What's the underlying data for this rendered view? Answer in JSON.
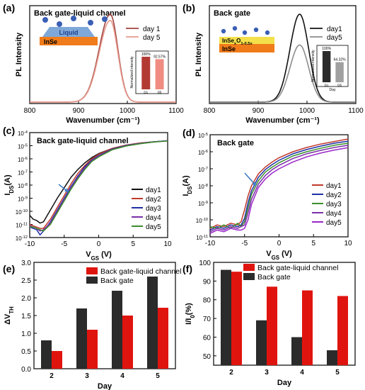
{
  "chart_data": [
    {
      "panel": "(a)",
      "type": "line",
      "title": "Back gate-liquid channel",
      "xlabel": "Wavenumber (cm⁻¹)",
      "ylabel": "PL Intensity",
      "xlim": [
        800,
        1100
      ],
      "xticks": [
        800,
        900,
        1000,
        1100
      ],
      "series": [
        {
          "name": "day 1",
          "color": "#a0433d",
          "peak_x": 965,
          "peak_y": 1.0
        },
        {
          "name": "day 5",
          "color": "#e89a8e",
          "peak_x": 965,
          "peak_y": 0.93
        }
      ],
      "schematic": {
        "top_label": "Liquid",
        "bottom_label": "InSe"
      },
      "inset": {
        "type": "bar",
        "ylabel": "Normalized intensity",
        "categories": [
          "D1",
          "D5"
        ],
        "values": [
          100,
          92.57
        ],
        "value_labels": [
          "100%",
          "92.57%"
        ]
      }
    },
    {
      "panel": "(b)",
      "type": "line",
      "title": "Back gate",
      "xlabel": "Wavenumber (cm⁻¹)",
      "ylabel": "PL Intensity",
      "xlim": [
        800,
        1100
      ],
      "xticks": [
        800,
        900,
        1000,
        1100
      ],
      "series": [
        {
          "name": "day1",
          "color": "#111111",
          "peak_x": 985,
          "peak_y": 1.0
        },
        {
          "name": "day5",
          "color": "#8c8c8c",
          "peak_x": 985,
          "peak_y": 0.65
        }
      ],
      "schematic": {
        "top_label": "InSe_xO_1-0.5x",
        "bottom_label": "InSe"
      },
      "inset": {
        "type": "bar",
        "xlabel": "Day",
        "ylabel": "Normalized intensity",
        "categories": [
          "D1",
          "D5"
        ],
        "values": [
          100,
          64.32
        ],
        "value_labels": [
          "100%",
          "64.32%"
        ]
      }
    },
    {
      "panel": "(c)",
      "type": "line",
      "title": "Back gate-liquid channel",
      "xlabel": "V_GS (V)",
      "ylabel": "I_DS(A)",
      "xlim": [
        -10,
        10
      ],
      "ylim_log10": [
        -12,
        -4
      ],
      "xticks": [
        -10,
        -5,
        0,
        5,
        10
      ],
      "yticks_exp": [
        -12,
        -11,
        -10,
        -9,
        -8,
        -7,
        -6,
        -5,
        -4
      ],
      "series": [
        {
          "name": "day1",
          "color": "#111111",
          "x": [
            -10,
            -9.5,
            -9,
            -8.5,
            -8,
            -7,
            -6,
            -5,
            -4,
            -3,
            -2,
            -1,
            0,
            2,
            4,
            6,
            8,
            10
          ],
          "log10_y": [
            -10.3,
            -10.6,
            -10.7,
            -10.9,
            -10.8,
            -9.9,
            -9.0,
            -8.2,
            -7.4,
            -6.8,
            -6.3,
            -5.9,
            -5.6,
            -5.2,
            -4.95,
            -4.8,
            -4.7,
            -4.62
          ]
        },
        {
          "name": "day2",
          "color": "#c0392b",
          "x": [
            -10,
            -9.5,
            -9,
            -8.5,
            -8,
            -7,
            -6,
            -5,
            -4,
            -3,
            -2,
            -1,
            0,
            2,
            4,
            6,
            8,
            10
          ],
          "log10_y": [
            -11.0,
            -11.1,
            -11.2,
            -11.3,
            -11.3,
            -10.6,
            -9.7,
            -8.8,
            -7.9,
            -7.1,
            -6.5,
            -6.0,
            -5.65,
            -5.2,
            -4.95,
            -4.8,
            -4.7,
            -4.62
          ]
        },
        {
          "name": "day3",
          "color": "#1f2fa5",
          "x": [
            -10,
            -9.5,
            -9,
            -8.5,
            -8,
            -7,
            -6,
            -5,
            -4,
            -3,
            -2,
            -1,
            0,
            2,
            4,
            6,
            8,
            10
          ],
          "log10_y": [
            -11.2,
            -11.3,
            -11.4,
            -11.8,
            -11.5,
            -10.8,
            -9.9,
            -9.0,
            -8.1,
            -7.3,
            -6.6,
            -6.1,
            -5.75,
            -5.25,
            -4.98,
            -4.82,
            -4.7,
            -4.62
          ]
        },
        {
          "name": "day4",
          "color": "#7b2fa8",
          "x": [
            -10,
            -9.5,
            -9,
            -8.5,
            -8,
            -7,
            -6,
            -5,
            -4,
            -3,
            -2,
            -1,
            0,
            2,
            4,
            6,
            8,
            10
          ],
          "log10_y": [
            -11.1,
            -11.2,
            -11.3,
            -11.5,
            -11.4,
            -10.9,
            -10.0,
            -9.1,
            -8.2,
            -7.4,
            -6.7,
            -6.15,
            -5.8,
            -5.28,
            -5.0,
            -4.83,
            -4.72,
            -4.63
          ]
        },
        {
          "name": "day5",
          "color": "#3a8f2b",
          "x": [
            -10,
            -9.5,
            -9,
            -8.5,
            -8,
            -7,
            -6,
            -5,
            -4,
            -3,
            -2,
            -1,
            0,
            2,
            4,
            6,
            8,
            10
          ],
          "log10_y": [
            -11.2,
            -11.2,
            -11.3,
            -11.4,
            -11.5,
            -11.0,
            -10.1,
            -9.2,
            -8.3,
            -7.5,
            -6.8,
            -6.2,
            -5.85,
            -5.3,
            -5.02,
            -4.85,
            -4.72,
            -4.63
          ]
        }
      ]
    },
    {
      "panel": "(d)",
      "type": "line",
      "title": "Back gate",
      "xlabel": "V_GS (V)",
      "ylabel": "I_DS(A)",
      "xlim": [
        -10,
        10
      ],
      "ylim_log10": [
        -11,
        -5
      ],
      "xticks": [
        -10,
        -5,
        0,
        5,
        10
      ],
      "yticks_exp": [
        -11,
        -10,
        -9,
        -8,
        -7,
        -6,
        -5
      ],
      "series": [
        {
          "name": "day1",
          "color": "#c0392b",
          "x": [
            -10,
            -9,
            -8,
            -7,
            -6,
            -5.5,
            -5,
            -4.5,
            -4,
            -3,
            -2,
            -1,
            0,
            2,
            4,
            6,
            8,
            10
          ],
          "log10_y": [
            -10.5,
            -10.3,
            -10.4,
            -10.2,
            -10.3,
            -10.1,
            -9.4,
            -8.6,
            -8.0,
            -7.3,
            -6.9,
            -6.6,
            -6.35,
            -6.0,
            -5.75,
            -5.55,
            -5.4,
            -5.25
          ]
        },
        {
          "name": "day2",
          "color": "#1f2fa5",
          "x": [
            -10,
            -9,
            -8,
            -7,
            -6,
            -5.5,
            -5,
            -4.5,
            -4,
            -3,
            -2,
            -1,
            0,
            2,
            4,
            6,
            8,
            10
          ],
          "log10_y": [
            -10.6,
            -10.4,
            -10.5,
            -10.3,
            -10.4,
            -10.3,
            -9.9,
            -9.0,
            -8.3,
            -7.5,
            -7.05,
            -6.75,
            -6.5,
            -6.12,
            -5.87,
            -5.67,
            -5.5,
            -5.38
          ]
        },
        {
          "name": "day3",
          "color": "#3a8f2b",
          "x": [
            -10,
            -9,
            -8,
            -7,
            -6,
            -5.5,
            -5,
            -4.5,
            -4,
            -3,
            -2,
            -1,
            0,
            2,
            4,
            6,
            8,
            10
          ],
          "log10_y": [
            -10.4,
            -10.5,
            -10.3,
            -10.5,
            -10.2,
            -10.4,
            -10.1,
            -9.3,
            -8.5,
            -7.7,
            -7.2,
            -6.9,
            -6.65,
            -6.25,
            -6.0,
            -5.8,
            -5.62,
            -5.5
          ]
        },
        {
          "name": "day4",
          "color": "#7b2fa8",
          "x": [
            -10,
            -9,
            -8,
            -7,
            -6,
            -5.5,
            -5,
            -4.5,
            -4,
            -3,
            -2,
            -1,
            0,
            2,
            4,
            6,
            8,
            10
          ],
          "log10_y": [
            -10.7,
            -10.5,
            -10.6,
            -10.4,
            -10.5,
            -10.4,
            -10.3,
            -9.6,
            -8.8,
            -7.9,
            -7.4,
            -7.05,
            -6.8,
            -6.4,
            -6.12,
            -5.92,
            -5.75,
            -5.62
          ]
        },
        {
          "name": "day5",
          "color": "#9b27c8",
          "x": [
            -10,
            -9,
            -8,
            -7,
            -6,
            -5.5,
            -5,
            -4.5,
            -4,
            -3,
            -2,
            -1,
            0,
            2,
            4,
            6,
            8,
            10
          ],
          "log10_y": [
            -10.8,
            -10.6,
            -10.7,
            -10.5,
            -10.6,
            -10.6,
            -10.5,
            -10.0,
            -9.1,
            -8.1,
            -7.6,
            -7.25,
            -7.0,
            -6.6,
            -6.3,
            -6.08,
            -5.9,
            -5.76
          ]
        }
      ]
    },
    {
      "panel": "(e)",
      "type": "bar",
      "xlabel": "Day",
      "ylabel": "ΔV_TH",
      "categories": [
        "2",
        "3",
        "4",
        "5"
      ],
      "ylim": [
        0,
        3.0
      ],
      "yticks": [
        "0.0",
        "0.5",
        "1.0",
        "1.5",
        "2.0",
        "2.5",
        "3.0"
      ],
      "series": [
        {
          "name": "Back gate",
          "color": "#2b2b2b",
          "values": [
            0.8,
            1.7,
            2.2,
            2.6
          ]
        },
        {
          "name": "Back gate-liquid channel",
          "color": "#e0140e",
          "values": [
            0.5,
            1.1,
            1.5,
            1.72
          ]
        }
      ]
    },
    {
      "panel": "(f)",
      "type": "bar",
      "xlabel": "Day",
      "ylabel": "I/I₀(%)",
      "categories": [
        "2",
        "3",
        "4",
        "5"
      ],
      "ylim": [
        45,
        100
      ],
      "yticks": [
        "50",
        "60",
        "70",
        "80",
        "90",
        "100"
      ],
      "series": [
        {
          "name": "Back gate",
          "color": "#2b2b2b",
          "values": [
            96,
            69,
            60,
            53
          ]
        },
        {
          "name": "Back gate-liquid channel",
          "color": "#e0140e",
          "values": [
            95,
            87,
            85,
            82
          ]
        }
      ]
    }
  ]
}
